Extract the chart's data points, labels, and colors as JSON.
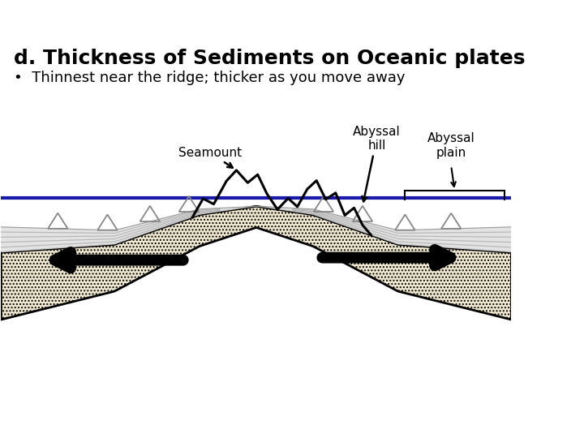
{
  "title": "d. Thickness of Sediments on Oceanic plates",
  "subtitle": "•  Thinnest near the ridge; thicker as you move away",
  "title_fontsize": 18,
  "subtitle_fontsize": 13,
  "bg_color": "#ffffff",
  "ocean_line_color": "#1a1aaa",
  "label_seamount": "Seamount",
  "label_abyssal_hill": "Abyssal\nhill",
  "label_abyssal_plain": "Abyssal\nplain"
}
